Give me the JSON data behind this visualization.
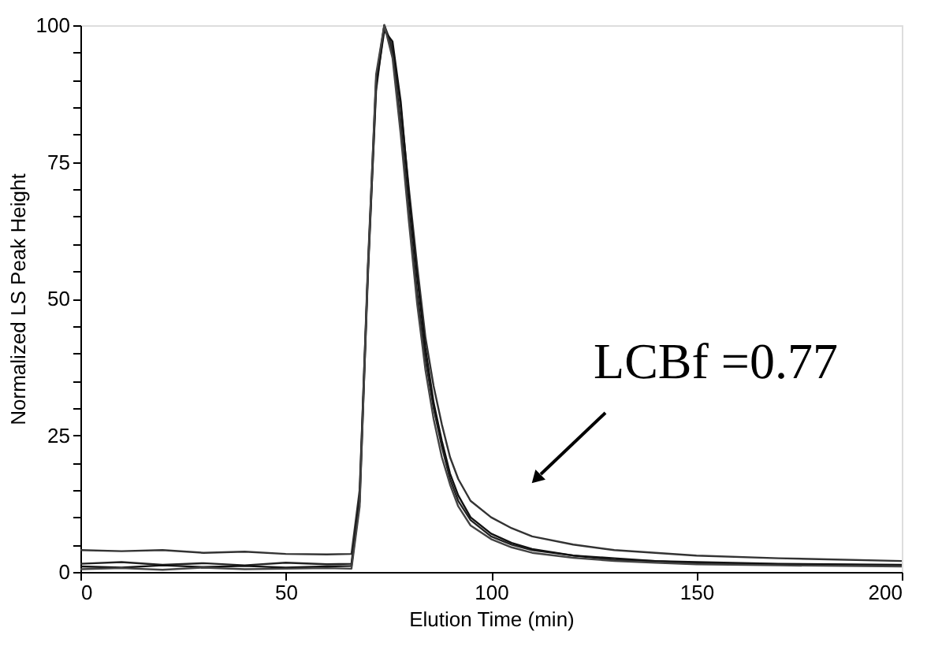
{
  "chart_data": {
    "type": "line",
    "xlabel": "Elution Time (min)",
    "ylabel": "Normalized LS Peak Height",
    "xlim": [
      0,
      200
    ],
    "xticks": [
      0,
      50,
      100,
      150,
      200
    ],
    "ylim": [
      0,
      100
    ],
    "yticks": [
      0,
      {
        "value": 5,
        "label": null
      },
      {
        "value": 10,
        "label": null
      },
      {
        "value": 15,
        "label": null
      },
      {
        "value": 20,
        "label": null
      },
      25,
      {
        "value": 30,
        "label": null
      },
      {
        "value": 35,
        "label": null
      },
      {
        "value": 40,
        "label": null
      },
      {
        "value": 45,
        "label": null
      },
      50,
      {
        "value": 55,
        "label": null
      },
      {
        "value": 60,
        "label": null
      },
      {
        "value": 65,
        "label": null
      },
      {
        "value": 70,
        "label": null
      },
      75,
      {
        "value": 80,
        "label": null
      },
      {
        "value": 85,
        "label": null
      },
      {
        "value": 90,
        "label": null
      },
      {
        "value": 95,
        "label": null
      },
      100
    ],
    "grid": false,
    "marker": "none",
    "line_style": "solid",
    "annotations": [
      "LCBf =0.77"
    ],
    "series": [
      {
        "color": "#333333",
        "x": [
          0,
          10,
          20,
          30,
          40,
          50,
          60,
          66,
          68,
          70,
          72,
          74,
          76,
          78,
          80,
          82,
          84,
          86,
          88,
          90,
          92,
          95,
          100,
          105,
          110,
          120,
          130,
          140,
          150,
          170,
          200
        ],
        "values": [
          4,
          3.8,
          4,
          3.5,
          3.7,
          3.3,
          3.2,
          3.3,
          15,
          55,
          88,
          100,
          96,
          85,
          70,
          56,
          43,
          34,
          27,
          21,
          17,
          13,
          10,
          8,
          6.5,
          5,
          4,
          3.5,
          3,
          2.5,
          2
        ]
      },
      {
        "color": "#222222",
        "x": [
          0,
          10,
          20,
          30,
          40,
          50,
          60,
          66,
          68,
          70,
          72,
          74,
          76,
          78,
          80,
          82,
          84,
          86,
          88,
          90,
          92,
          95,
          100,
          105,
          110,
          120,
          130,
          140,
          150,
          170,
          200
        ],
        "values": [
          1.5,
          1.8,
          1.3,
          1.6,
          1.2,
          1.7,
          1.4,
          1.5,
          14,
          56,
          90,
          100,
          95,
          82,
          66,
          51,
          39,
          30,
          23,
          17,
          13,
          9.5,
          6.5,
          5,
          4,
          3,
          2.2,
          2,
          1.6,
          1.4,
          1.2
        ]
      },
      {
        "color": "#111111",
        "x": [
          0,
          10,
          20,
          30,
          40,
          50,
          60,
          66,
          68,
          70,
          72,
          74,
          76,
          78,
          80,
          82,
          84,
          86,
          88,
          90,
          92,
          95,
          100,
          105,
          110,
          120,
          130,
          140,
          150,
          170,
          200
        ],
        "values": [
          1,
          0.8,
          1.2,
          0.9,
          1.1,
          0.8,
          1,
          1.1,
          13,
          54,
          89,
          99,
          97,
          86,
          69,
          54,
          41,
          31,
          24,
          18,
          14,
          10,
          7,
          5.3,
          4.2,
          3,
          2.5,
          2,
          1.8,
          1.5,
          1.3
        ]
      },
      {
        "color": "#444444",
        "x": [
          0,
          10,
          20,
          30,
          40,
          50,
          60,
          66,
          68,
          70,
          72,
          74,
          76,
          78,
          80,
          82,
          84,
          86,
          88,
          90,
          92,
          95,
          100,
          105,
          110,
          120,
          130,
          140,
          150,
          170,
          200
        ],
        "values": [
          0.5,
          0.7,
          0.4,
          0.8,
          0.5,
          0.6,
          0.7,
          0.6,
          12,
          55,
          91,
          100,
          94,
          80,
          64,
          49,
          37,
          28,
          21,
          16,
          12,
          8.5,
          6,
          4.5,
          3.5,
          2.6,
          2,
          1.7,
          1.4,
          1.2,
          1
        ]
      }
    ]
  }
}
